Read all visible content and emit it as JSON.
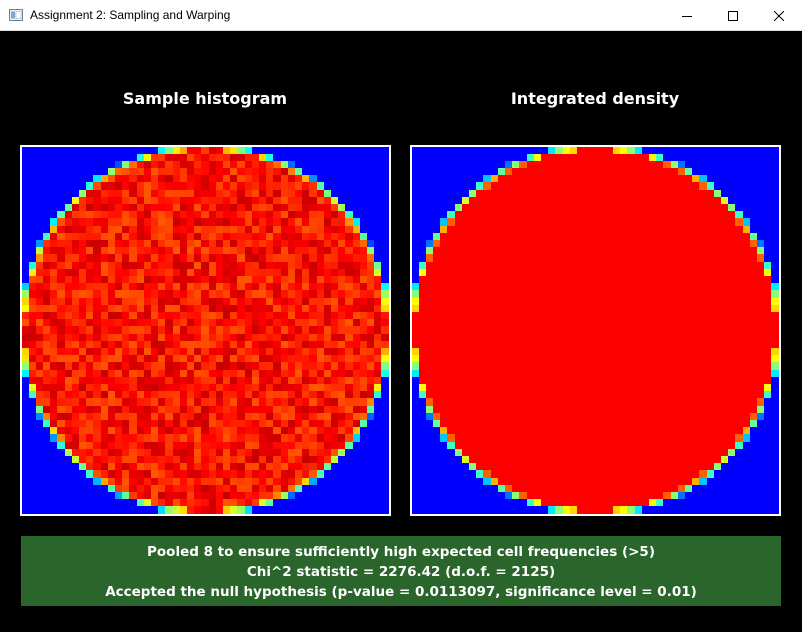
{
  "window": {
    "title": "Assignment 2: Sampling and Warping",
    "icon": "app-window-icon",
    "controls": [
      "minimize-icon",
      "maximize-icon",
      "close-icon"
    ]
  },
  "panels": {
    "left": {
      "title": "Sample histogram"
    },
    "right": {
      "title": "Integrated density"
    }
  },
  "results": {
    "line1": "Pooled 8 to ensure sufficiently high expected cell frequencies (>5)",
    "line2": "Chi^2 statistic = 2276.42 (d.o.f. = 2125)",
    "line3": "Accepted the null hypothesis (p-value = 0.0113097, significance level = 0.01)"
  },
  "colors": {
    "background": "#000000",
    "panel_background": "#0000ff",
    "density_fill": "#ff6000",
    "results_background": "#2a652b"
  }
}
